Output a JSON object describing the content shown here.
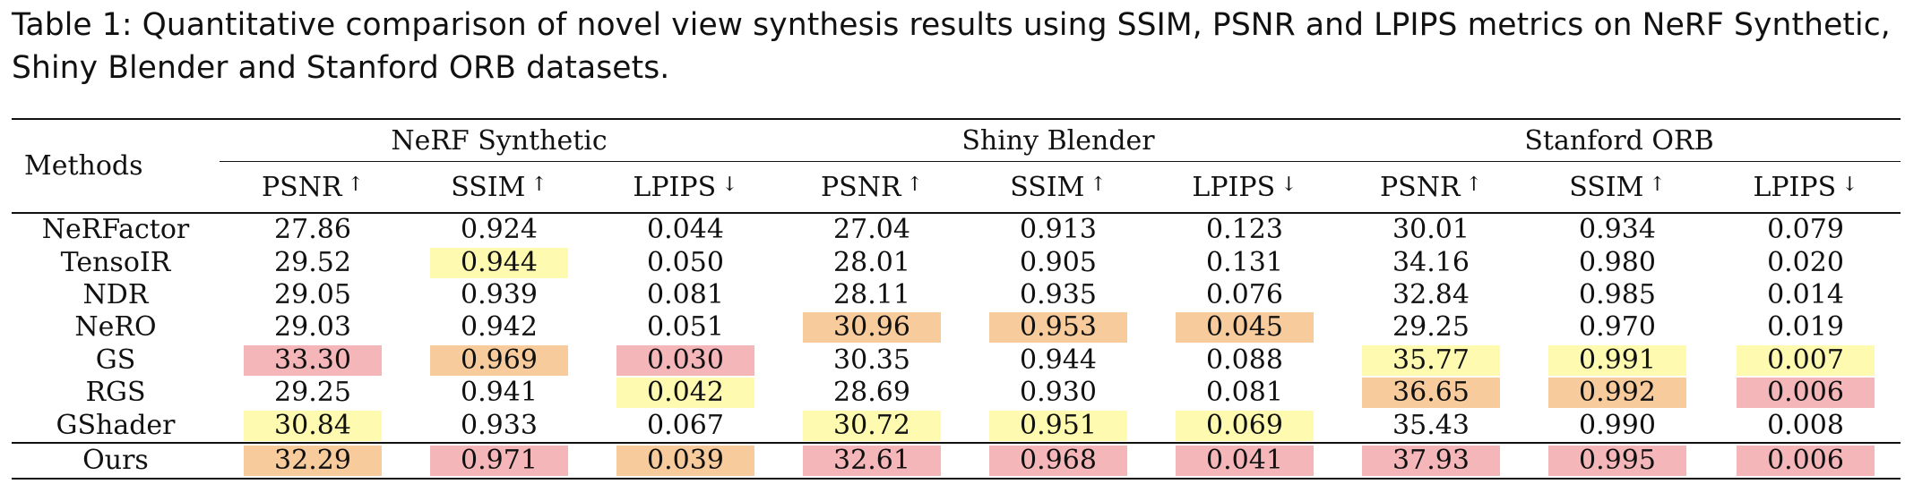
{
  "caption": "Table 1: Quantitative comparison of novel view synthesis results using SSIM, PSNR and LPIPS metrics on NeRF Synthetic, Shiny Blender and Stanford ORB datasets.",
  "colors": {
    "rank1": "#f4b6b8",
    "rank2": "#f7cb9b",
    "rank3": "#fefbb0"
  },
  "table": {
    "methods_header": "Methods",
    "groups": [
      "NeRF Synthetic",
      "Shiny Blender",
      "Stanford ORB"
    ],
    "metrics": [
      {
        "label": "PSNR",
        "arrow": "↑"
      },
      {
        "label": "SSIM",
        "arrow": "↑"
      },
      {
        "label": "LPIPS",
        "arrow": "↓"
      },
      {
        "label": "PSNR",
        "arrow": "↑"
      },
      {
        "label": "SSIM",
        "arrow": "↑"
      },
      {
        "label": "LPIPS",
        "arrow": "↓"
      },
      {
        "label": "PSNR",
        "arrow": "↑"
      },
      {
        "label": "SSIM",
        "arrow": "↑"
      },
      {
        "label": "LPIPS",
        "arrow": "↓"
      }
    ],
    "rows": [
      {
        "method": "NeRFactor",
        "values": [
          "27.86",
          "0.924",
          "0.044",
          "27.04",
          "0.913",
          "0.123",
          "30.01",
          "0.934",
          "0.079"
        ],
        "ranks": [
          0,
          0,
          0,
          0,
          0,
          0,
          0,
          0,
          0
        ]
      },
      {
        "method": "TensoIR",
        "values": [
          "29.52",
          "0.944",
          "0.050",
          "28.01",
          "0.905",
          "0.131",
          "34.16",
          "0.980",
          "0.020"
        ],
        "ranks": [
          0,
          3,
          0,
          0,
          0,
          0,
          0,
          0,
          0
        ]
      },
      {
        "method": "NDR",
        "values": [
          "29.05",
          "0.939",
          "0.081",
          "28.11",
          "0.935",
          "0.076",
          "32.84",
          "0.985",
          "0.014"
        ],
        "ranks": [
          0,
          0,
          0,
          0,
          0,
          0,
          0,
          0,
          0
        ]
      },
      {
        "method": "NeRO",
        "values": [
          "29.03",
          "0.942",
          "0.051",
          "30.96",
          "0.953",
          "0.045",
          "29.25",
          "0.970",
          "0.019"
        ],
        "ranks": [
          0,
          0,
          0,
          2,
          2,
          2,
          0,
          0,
          0
        ]
      },
      {
        "method": "GS",
        "values": [
          "33.30",
          "0.969",
          "0.030",
          "30.35",
          "0.944",
          "0.088",
          "35.77",
          "0.991",
          "0.007"
        ],
        "ranks": [
          1,
          2,
          1,
          0,
          0,
          0,
          3,
          3,
          3
        ]
      },
      {
        "method": "RGS",
        "values": [
          "29.25",
          "0.941",
          "0.042",
          "28.69",
          "0.930",
          "0.081",
          "36.65",
          "0.992",
          "0.006"
        ],
        "ranks": [
          0,
          0,
          3,
          0,
          0,
          0,
          2,
          2,
          1
        ]
      },
      {
        "method": "GShader",
        "values": [
          "30.84",
          "0.933",
          "0.067",
          "30.72",
          "0.951",
          "0.069",
          "35.43",
          "0.990",
          "0.008"
        ],
        "ranks": [
          3,
          0,
          0,
          3,
          3,
          3,
          0,
          0,
          0
        ]
      }
    ],
    "ours": {
      "method": "Ours",
      "values": [
        "32.29",
        "0.971",
        "0.039",
        "32.61",
        "0.968",
        "0.041",
        "37.93",
        "0.995",
        "0.006"
      ],
      "ranks": [
        2,
        1,
        2,
        1,
        1,
        1,
        1,
        1,
        1
      ]
    }
  }
}
